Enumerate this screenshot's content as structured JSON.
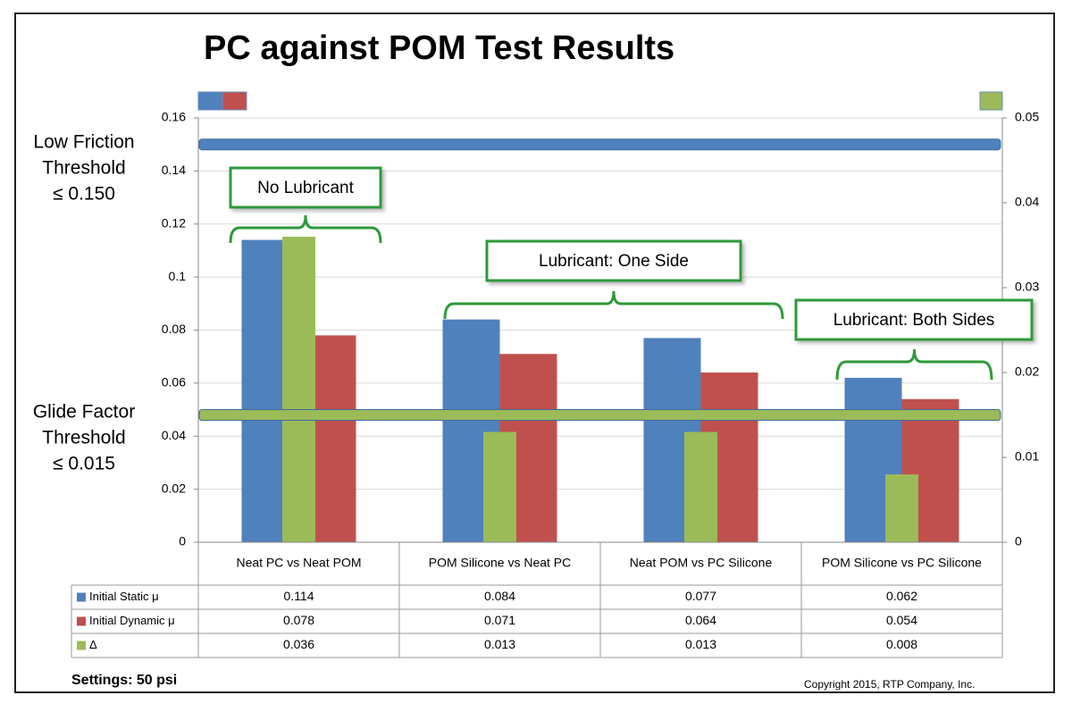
{
  "chart_data": {
    "type": "bar",
    "title": "PC against POM Test Results",
    "categories": [
      "Neat PC vs Neat POM",
      "POM Silicone vs Neat PC",
      "Neat POM vs PC Silicone",
      "POM Silicone vs PC Silicone"
    ],
    "series": [
      {
        "name": "Initial Static μ",
        "color": "#4f81bd",
        "values": [
          0.114,
          0.084,
          0.077,
          0.062
        ]
      },
      {
        "name": "Initial Dynamic μ",
        "color": "#c0504d",
        "values": [
          0.078,
          0.071,
          0.064,
          0.054
        ]
      },
      {
        "name": "Δ",
        "color": "#9bbb59",
        "values": [
          0.036,
          0.013,
          0.013,
          0.008
        ],
        "axis": "y2"
      }
    ],
    "ylim": [
      0,
      0.16
    ],
    "yticks": [
      0,
      0.02,
      0.04,
      0.06,
      0.08,
      0.1,
      0.12,
      0.14,
      0.16
    ],
    "y2lim": [
      0,
      0.05
    ],
    "y2ticks": [
      0,
      0.01,
      0.02,
      0.03,
      0.04,
      0.05
    ],
    "grid": true,
    "thresholds": [
      {
        "lines": [
          "Low Friction",
          "Threshold",
          "≤ 0.150"
        ],
        "value": 0.15,
        "color": "#4f81bd"
      },
      {
        "lines": [
          "Glide Factor",
          "Threshold",
          "≤ 0.015"
        ],
        "value": 0.015,
        "axis": "y2",
        "color": "#9bbb59"
      }
    ],
    "annotations": [
      "No Lubricant",
      "Lubricant: One Side",
      "Lubricant: Both Sides"
    ]
  },
  "footer": {
    "settings": "Settings: 50 psi",
    "copyright": "Copyright 2015, RTP Company, Inc."
  }
}
